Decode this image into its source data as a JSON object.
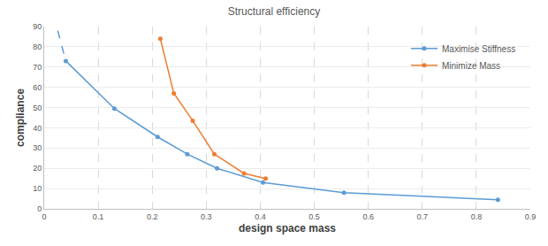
{
  "chart_data": {
    "type": "line",
    "title": "Structural efficiency",
    "x_label": "design space mass",
    "y_label": "compliance",
    "series": [
      {
        "name": "Maximise Stiffness",
        "color": "#5b9bd5",
        "marker": "circle",
        "line_style": "solid",
        "x": [
          0.04,
          0.13,
          0.21,
          0.265,
          0.32,
          0.405,
          0.555,
          0.84
        ],
        "values": [
          73,
          49.5,
          35.5,
          27,
          20,
          13,
          8,
          4.5
        ]
      },
      {
        "name": "Minimize Mass",
        "color": "#ed7d31",
        "marker": "circle",
        "line_style": "solid",
        "x": [
          0.215,
          0.24,
          0.275,
          0.315,
          0.37,
          0.41
        ],
        "values": [
          84,
          57,
          43.5,
          27,
          17.5,
          15
        ]
      },
      {
        "color": "#5b9bd5",
        "marker": "none",
        "line_style": "dash",
        "x": [
          0.025,
          0.04
        ],
        "values": [
          88,
          73
        ]
      }
    ],
    "xlim": [
      0,
      0.9
    ],
    "xticks": [
      0,
      0.1,
      0.2,
      0.3,
      0.4,
      0.5,
      0.6,
      0.7,
      0.8,
      0.9
    ],
    "ylim": [
      0,
      90
    ],
    "yticks": [
      0,
      10,
      20,
      30,
      40,
      50,
      60,
      70,
      80,
      90
    ],
    "grid": true,
    "legend": "top right"
  }
}
